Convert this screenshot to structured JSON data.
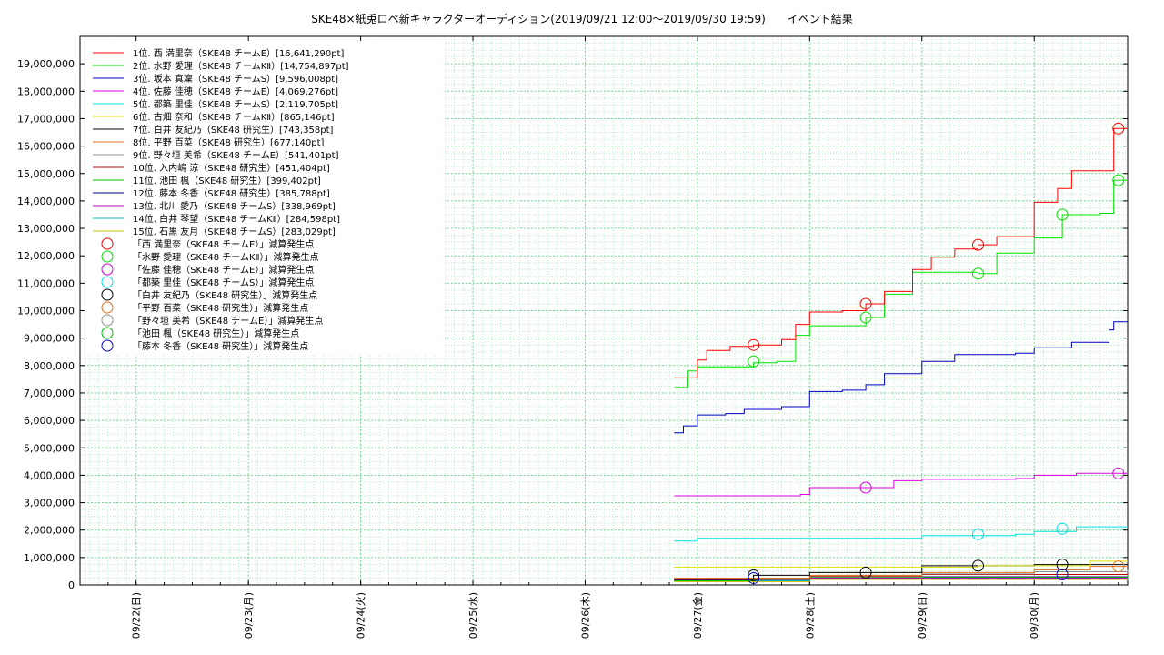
{
  "chart_data": {
    "type": "line",
    "title": "SKE48×紙兎ロペ新キャラクターオーディション(2019/09/21 12:00～2019/09/30 19:59)　　イベント結果",
    "xlabel": "",
    "ylabel": "",
    "x_tick_labels": [
      "09/22(日)",
      "09/23(月)",
      "09/24(火)",
      "09/25(水)",
      "09/26(木)",
      "09/27(金)",
      "09/28(土)",
      "09/29(日)",
      "09/30(月)"
    ],
    "x_tick_dates": [
      "2019-09-22",
      "2019-09-23",
      "2019-09-24",
      "2019-09-25",
      "2019-09-26",
      "2019-09-27",
      "2019-09-28",
      "2019-09-29",
      "2019-09-30"
    ],
    "xlim": [
      "2019-09-21 12:00",
      "2019-09-30 19:59"
    ],
    "ylim": [
      0,
      20000000
    ],
    "y_ticks": [
      0,
      1000000,
      2000000,
      3000000,
      4000000,
      5000000,
      6000000,
      7000000,
      8000000,
      9000000,
      10000000,
      11000000,
      12000000,
      13000000,
      14000000,
      15000000,
      16000000,
      17000000,
      18000000,
      19000000
    ],
    "y_tick_labels": [
      "0",
      "1,000,000",
      "2,000,000",
      "3,000,000",
      "4,000,000",
      "5,000,000",
      "6,000,000",
      "7,000,000",
      "8,000,000",
      "9,000,000",
      "10,000,000",
      "11,000,000",
      "12,000,000",
      "13,000,000",
      "14,000,000",
      "15,000,000",
      "16,000,000",
      "17,000,000",
      "18,000,000",
      "19,000,000"
    ],
    "grid": true,
    "legend_position": "top-left",
    "series": [
      {
        "name": "1位. 西 満里奈（SKE48 チームE）[16,641,290pt]",
        "color": "#ff0000",
        "points": [
          [
            "2019-09-26 19:00",
            7550000
          ],
          [
            "2019-09-26 22:00",
            7550000
          ],
          [
            "2019-09-27 00:00",
            8200000
          ],
          [
            "2019-09-27 02:00",
            8550000
          ],
          [
            "2019-09-27 07:00",
            8700000
          ],
          [
            "2019-09-27 12:00",
            8750000
          ],
          [
            "2019-09-27 18:00",
            8950000
          ],
          [
            "2019-09-27 21:00",
            9500000
          ],
          [
            "2019-09-28 00:00",
            9950000
          ],
          [
            "2019-09-28 07:00",
            10000000
          ],
          [
            "2019-09-28 12:00",
            10250000
          ],
          [
            "2019-09-28 16:00",
            10700000
          ],
          [
            "2019-09-28 22:00",
            11500000
          ],
          [
            "2019-09-29 02:00",
            11950000
          ],
          [
            "2019-09-29 07:00",
            12250000
          ],
          [
            "2019-09-29 12:00",
            12400000
          ],
          [
            "2019-09-29 16:00",
            12700000
          ],
          [
            "2019-09-29 20:00",
            12700000
          ],
          [
            "2019-09-30 00:00",
            13950000
          ],
          [
            "2019-09-30 05:00",
            14450000
          ],
          [
            "2019-09-30 08:00",
            15100000
          ],
          [
            "2019-09-30 17:00",
            16641290
          ],
          [
            "2019-09-30 19:59",
            16641290
          ]
        ]
      },
      {
        "name": "2位. 水野 愛理（SKE48 チームKⅡ）[14,754,897pt]",
        "color": "#00e000",
        "points": [
          [
            "2019-09-26 19:00",
            7200000
          ],
          [
            "2019-09-26 22:00",
            7800000
          ],
          [
            "2019-09-27 00:00",
            7950000
          ],
          [
            "2019-09-27 07:00",
            7950000
          ],
          [
            "2019-09-27 12:00",
            8100000
          ],
          [
            "2019-09-27 17:00",
            8150000
          ],
          [
            "2019-09-27 21:00",
            9100000
          ],
          [
            "2019-09-28 00:00",
            9450000
          ],
          [
            "2019-09-28 12:00",
            9750000
          ],
          [
            "2019-09-28 16:00",
            10600000
          ],
          [
            "2019-09-28 22:00",
            11400000
          ],
          [
            "2019-09-29 12:00",
            11350000
          ],
          [
            "2019-09-29 16:00",
            12100000
          ],
          [
            "2019-09-29 20:00",
            12100000
          ],
          [
            "2019-09-30 00:00",
            12650000
          ],
          [
            "2019-09-30 06:00",
            13500000
          ],
          [
            "2019-09-30 14:00",
            13550000
          ],
          [
            "2019-09-30 17:00",
            14754897
          ],
          [
            "2019-09-30 19:59",
            14754897
          ]
        ]
      },
      {
        "name": "3位. 坂本 真凜（SKE48 チームS）[9,596,008pt]",
        "color": "#0000c0",
        "points": [
          [
            "2019-09-26 19:00",
            5550000
          ],
          [
            "2019-09-26 21:00",
            5800000
          ],
          [
            "2019-09-27 00:00",
            6200000
          ],
          [
            "2019-09-27 06:00",
            6250000
          ],
          [
            "2019-09-27 10:00",
            6400000
          ],
          [
            "2019-09-27 18:00",
            6500000
          ],
          [
            "2019-09-28 00:00",
            7050000
          ],
          [
            "2019-09-28 07:00",
            7100000
          ],
          [
            "2019-09-28 12:00",
            7300000
          ],
          [
            "2019-09-28 16:00",
            7700000
          ],
          [
            "2019-09-29 00:00",
            8150000
          ],
          [
            "2019-09-29 07:00",
            8400000
          ],
          [
            "2019-09-29 20:00",
            8450000
          ],
          [
            "2019-09-30 00:00",
            8650000
          ],
          [
            "2019-09-30 08:00",
            8850000
          ],
          [
            "2019-09-30 16:00",
            9300000
          ],
          [
            "2019-09-30 17:00",
            9596008
          ],
          [
            "2019-09-30 19:59",
            9596008
          ]
        ]
      },
      {
        "name": "4位. 佐藤 佳穂（SKE48 チームE）[4,069,276pt]",
        "color": "#e000e0",
        "points": [
          [
            "2019-09-26 19:00",
            3250000
          ],
          [
            "2019-09-27 22:00",
            3300000
          ],
          [
            "2019-09-28 00:00",
            3550000
          ],
          [
            "2019-09-28 14:00",
            3550000
          ],
          [
            "2019-09-28 18:00",
            3800000
          ],
          [
            "2019-09-29 00:00",
            3850000
          ],
          [
            "2019-09-29 20:00",
            3880000
          ],
          [
            "2019-09-30 00:00",
            4000000
          ],
          [
            "2019-09-30 09:00",
            4069276
          ],
          [
            "2019-09-30 19:59",
            4069276
          ]
        ]
      },
      {
        "name": "5位. 都築 里佳（SKE48 チームS）[2,119,705pt]",
        "color": "#00e0e0",
        "points": [
          [
            "2019-09-26 19:00",
            1600000
          ],
          [
            "2019-09-27 00:00",
            1700000
          ],
          [
            "2019-09-28 00:00",
            1700000
          ],
          [
            "2019-09-29 00:00",
            1800000
          ],
          [
            "2019-09-29 20:00",
            1850000
          ],
          [
            "2019-09-30 00:00",
            1950000
          ],
          [
            "2019-09-30 09:00",
            2119705
          ],
          [
            "2019-09-30 19:59",
            2119705
          ]
        ]
      },
      {
        "name": "6位. 古畑 奈和（SKE48 チームKⅡ）[865,146pt]",
        "color": "#e0e000",
        "points": [
          [
            "2019-09-26 19:00",
            650000
          ],
          [
            "2019-09-29 12:00",
            700000
          ],
          [
            "2019-09-30 12:00",
            865146
          ],
          [
            "2019-09-30 19:59",
            865146
          ]
        ]
      },
      {
        "name": "7位. 白井 友紀乃（SKE48 研究生）[743,358pt]",
        "color": "#000000",
        "points": [
          [
            "2019-09-26 19:00",
            200000
          ],
          [
            "2019-09-27 12:00",
            350000
          ],
          [
            "2019-09-28 00:00",
            450000
          ],
          [
            "2019-09-29 00:00",
            700000
          ],
          [
            "2019-09-30 00:00",
            743358
          ],
          [
            "2019-09-30 19:59",
            743358
          ]
        ]
      },
      {
        "name": "8位. 平野 百菜（SKE48 研究生）[677,140pt]",
        "color": "#e07020",
        "points": [
          [
            "2019-09-26 19:00",
            250000
          ],
          [
            "2019-09-28 00:00",
            350000
          ],
          [
            "2019-09-29 00:00",
            450000
          ],
          [
            "2019-09-30 00:00",
            550000
          ],
          [
            "2019-09-30 12:00",
            677140
          ],
          [
            "2019-09-30 19:59",
            677140
          ]
        ]
      },
      {
        "name": "9位. 野々垣 美希（SKE48 チームE）[541,401pt]",
        "color": "#909090",
        "points": [
          [
            "2019-09-26 19:00",
            230000
          ],
          [
            "2019-09-28 00:00",
            300000
          ],
          [
            "2019-09-29 00:00",
            400000
          ],
          [
            "2019-09-30 00:00",
            480000
          ],
          [
            "2019-09-30 19:59",
            541401
          ]
        ]
      },
      {
        "name": "10位. 入内嶋 涼（SKE48 研究生）[451,404pt]",
        "color": "#c00000",
        "points": [
          [
            "2019-09-26 19:00",
            220000
          ],
          [
            "2019-09-28 00:00",
            320000
          ],
          [
            "2019-09-29 00:00",
            380000
          ],
          [
            "2019-09-30 19:59",
            451404
          ]
        ]
      },
      {
        "name": "11位. 池田 楓（SKE48 研究生）[399,402pt]",
        "color": "#00c000",
        "points": [
          [
            "2019-09-26 19:00",
            150000
          ],
          [
            "2019-09-27 12:00",
            200000
          ],
          [
            "2019-09-28 00:00",
            280000
          ],
          [
            "2019-09-30 19:59",
            399402
          ]
        ]
      },
      {
        "name": "12位. 藤本 冬香（SKE48 研究生）[385,788pt]",
        "color": "#000080",
        "points": [
          [
            "2019-09-26 19:00",
            150000
          ],
          [
            "2019-09-27 12:00",
            250000
          ],
          [
            "2019-09-28 00:00",
            300000
          ],
          [
            "2019-09-30 19:59",
            385788
          ]
        ]
      },
      {
        "name": "13位. 北川 愛乃（SKE48 チームS）[338,969pt]",
        "color": "#c000c0",
        "points": [
          [
            "2019-09-26 19:00",
            180000
          ],
          [
            "2019-09-28 00:00",
            250000
          ],
          [
            "2019-09-30 19:59",
            338969
          ]
        ]
      },
      {
        "name": "14位. 白井 琴望（SKE48 チームKⅡ）[284,598pt]",
        "color": "#00c0c0",
        "points": [
          [
            "2019-09-26 19:00",
            150000
          ],
          [
            "2019-09-28 00:00",
            220000
          ],
          [
            "2019-09-30 19:59",
            284598
          ]
        ]
      },
      {
        "name": "15位. 石黒 友月（SKE48 チームS）[283,029pt]",
        "color": "#c0c000",
        "points": [
          [
            "2019-09-26 19:00",
            120000
          ],
          [
            "2019-09-28 00:00",
            200000
          ],
          [
            "2019-09-30 19:59",
            283029
          ]
        ]
      }
    ],
    "marker_sets": [
      {
        "name": "「西 満里奈（SKE48 チームE）」減算発生点",
        "color": "#ff0000",
        "points": [
          [
            "2019-09-27 12:00",
            8750000
          ],
          [
            "2019-09-28 12:00",
            10250000
          ],
          [
            "2019-09-29 12:00",
            12400000
          ],
          [
            "2019-09-30 18:00",
            16641290
          ]
        ]
      },
      {
        "name": "「水野 愛理（SKE48 チームKⅡ）」減算発生点",
        "color": "#00e000",
        "points": [
          [
            "2019-09-27 12:00",
            8150000
          ],
          [
            "2019-09-28 12:00",
            9750000
          ],
          [
            "2019-09-29 12:00",
            11350000
          ],
          [
            "2019-09-30 06:00",
            13500000
          ],
          [
            "2019-09-30 18:00",
            14754897
          ]
        ]
      },
      {
        "name": "「佐藤 佳穂（SKE48 チームE）」減算発生点",
        "color": "#e000e0",
        "points": [
          [
            "2019-09-28 12:00",
            3550000
          ],
          [
            "2019-09-30 18:00",
            4069276
          ]
        ]
      },
      {
        "name": "「都築 里佳（SKE48 チームS）」減算発生点",
        "color": "#00e0e0",
        "points": [
          [
            "2019-09-29 12:00",
            1850000
          ],
          [
            "2019-09-30 06:00",
            2050000
          ]
        ]
      },
      {
        "name": "「白井 友紀乃（SKE48 研究生）」減算発生点",
        "color": "#000000",
        "points": [
          [
            "2019-09-27 12:00",
            350000
          ],
          [
            "2019-09-28 12:00",
            450000
          ],
          [
            "2019-09-29 12:00",
            700000
          ],
          [
            "2019-09-30 06:00",
            743358
          ]
        ]
      },
      {
        "name": "「平野 百菜（SKE48 研究生）」減算発生点",
        "color": "#e07020",
        "points": [
          [
            "2019-09-30 18:00",
            677140
          ]
        ]
      },
      {
        "name": "「野々垣 美希（SKE48 チームE）」減算発生点",
        "color": "#909090",
        "points": []
      },
      {
        "name": "「池田 楓（SKE48 研究生）」減算発生点",
        "color": "#00c000",
        "points": []
      },
      {
        "name": "「藤本 冬香（SKE48 研究生）」減算発生点",
        "color": "#0000c0",
        "points": [
          [
            "2019-09-27 12:00",
            250000
          ],
          [
            "2019-09-30 06:00",
            385788
          ]
        ]
      }
    ]
  }
}
